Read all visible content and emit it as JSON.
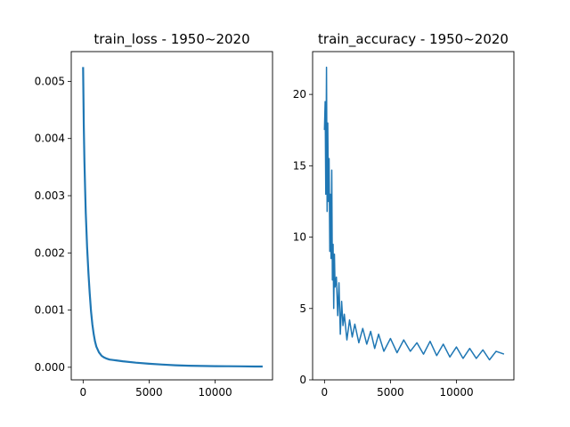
{
  "chart_data": [
    {
      "type": "line",
      "title": "train_loss - 1950~2020",
      "xlabel": "",
      "ylabel": "",
      "xlim": [
        -900,
        14350
      ],
      "ylim": [
        -0.00022,
        0.00552
      ],
      "xticks": [
        0,
        5000,
        10000
      ],
      "xtick_labels": [
        "0",
        "5000",
        "10000"
      ],
      "yticks": [
        0.0,
        0.001,
        0.002,
        0.003,
        0.004,
        0.005
      ],
      "ytick_labels": [
        "0.000",
        "0.001",
        "0.002",
        "0.003",
        "0.004",
        "0.005"
      ],
      "grid": false,
      "color": "#1f77b4",
      "x": [
        0,
        50,
        100,
        150,
        200,
        300,
        400,
        500,
        600,
        700,
        800,
        900,
        1000,
        1200,
        1400,
        1600,
        1800,
        2000,
        2500,
        3000,
        4000,
        5000,
        6000,
        7000,
        8000,
        9000,
        10000,
        11000,
        12000,
        13000,
        13600
      ],
      "y": [
        0.00525,
        0.0042,
        0.0036,
        0.0031,
        0.0027,
        0.0021,
        0.00165,
        0.0013,
        0.00098,
        0.00075,
        0.00058,
        0.00045,
        0.00036,
        0.00026,
        0.0002,
        0.00017,
        0.00015,
        0.000135,
        0.00012,
        0.000105,
        8e-05,
        6.2e-05,
        4.8e-05,
        3.5e-05,
        2.8e-05,
        2.2e-05,
        2e-05,
        1.8e-05,
        1.6e-05,
        1.4e-05,
        1.3e-05
      ]
    },
    {
      "type": "line",
      "title": "train_accuracy - 1950~2020",
      "xlabel": "",
      "ylabel": "",
      "xlim": [
        -900,
        14350
      ],
      "ylim": [
        0,
        23
      ],
      "xticks": [
        0,
        5000,
        10000
      ],
      "xtick_labels": [
        "0",
        "5000",
        "10000"
      ],
      "yticks": [
        0,
        5,
        10,
        15,
        20
      ],
      "ytick_labels": [
        "0",
        "5",
        "10",
        "15",
        "20"
      ],
      "grid": false,
      "color": "#1f77b4",
      "x": [
        0,
        50,
        100,
        150,
        200,
        250,
        300,
        350,
        400,
        450,
        500,
        550,
        600,
        650,
        700,
        750,
        800,
        900,
        1000,
        1100,
        1200,
        1300,
        1400,
        1500,
        1700,
        1900,
        2100,
        2300,
        2600,
        2900,
        3200,
        3500,
        3800,
        4100,
        4500,
        5000,
        5500,
        6000,
        6500,
        7000,
        7500,
        8000,
        8500,
        9000,
        9500,
        10000,
        10500,
        11000,
        11500,
        12000,
        12500,
        13000,
        13600
      ],
      "y": [
        17.5,
        19.5,
        13.0,
        21.9,
        11.8,
        18.0,
        12.5,
        15.5,
        9.0,
        13.0,
        8.5,
        14.7,
        7.0,
        9.5,
        5.0,
        8.8,
        6.5,
        7.2,
        4.5,
        6.8,
        3.2,
        5.5,
        3.8,
        4.6,
        2.8,
        4.2,
        3.0,
        3.9,
        2.6,
        3.6,
        2.5,
        3.4,
        2.2,
        3.2,
        2.0,
        2.9,
        1.9,
        2.8,
        2.0,
        2.6,
        1.8,
        2.7,
        1.7,
        2.5,
        1.6,
        2.3,
        1.5,
        2.2,
        1.5,
        2.1,
        1.4,
        2.0,
        1.8
      ]
    }
  ]
}
